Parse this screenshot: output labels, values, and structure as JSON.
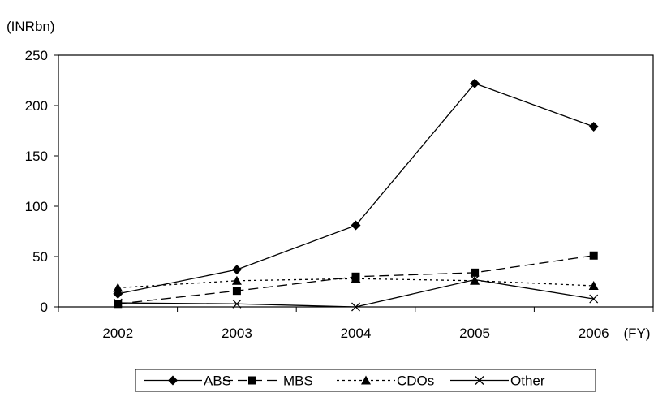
{
  "chart_data": {
    "type": "line",
    "title": "",
    "ylabel": "(INRbn)",
    "xlabel": "(FY)",
    "categories": [
      "2002",
      "2003",
      "2004",
      "2005",
      "2006"
    ],
    "ylim": [
      0,
      250
    ],
    "yticks": [
      0,
      50,
      100,
      150,
      200,
      250
    ],
    "grid": false,
    "legend_position": "bottom",
    "series": [
      {
        "name": "ABS",
        "values": [
          13,
          37,
          81,
          222,
          179
        ],
        "marker": "diamond",
        "line": "solid"
      },
      {
        "name": "MBS",
        "values": [
          3,
          16,
          30,
          34,
          51
        ],
        "marker": "square",
        "line": "dashed"
      },
      {
        "name": "CDOs",
        "values": [
          19,
          26,
          28,
          26,
          21
        ],
        "marker": "triangle",
        "line": "dotted"
      },
      {
        "name": "Other",
        "values": [
          4,
          3,
          0,
          27,
          8
        ],
        "marker": "x",
        "line": "solid"
      }
    ]
  }
}
